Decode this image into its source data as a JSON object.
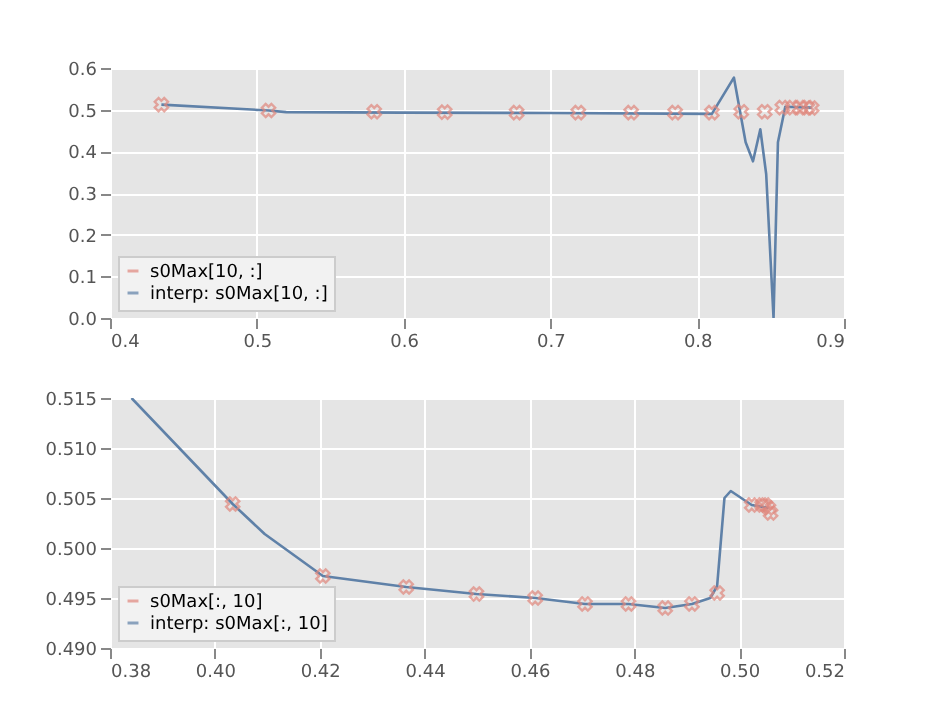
{
  "chart_data": [
    {
      "type": "scatter",
      "xlim": [
        0.4,
        0.9
      ],
      "ylim": [
        0.0,
        0.6
      ],
      "xticks": [
        0.4,
        0.5,
        0.6,
        0.7,
        0.8,
        0.9
      ],
      "yticks": [
        {
          "value": 0,
          "label": "0.0"
        },
        0.1,
        0.2,
        0.3,
        0.4,
        0.5,
        0.6
      ],
      "grid": true,
      "legend": "bottom left",
      "series": [
        {
          "name": "s0Max[10, :]",
          "color": "#e0877c",
          "marker": "cross",
          "x": [
            0.435,
            0.508,
            0.58,
            0.628,
            0.677,
            0.719,
            0.755,
            0.785,
            0.81,
            0.83,
            0.846,
            0.858,
            0.865,
            0.87,
            0.875,
            0.878
          ],
          "values": [
            0.512,
            0.498,
            0.495,
            0.494,
            0.493,
            0.493,
            0.493,
            0.493,
            0.493,
            0.495,
            0.495,
            0.505,
            0.505,
            0.505,
            0.505,
            0.504
          ]
        },
        {
          "name": "interp: s0Max[10, :]",
          "type": "line",
          "color": "#5f81a8",
          "x": [
            0.435,
            0.508,
            0.52,
            0.6,
            0.7,
            0.81,
            0.825,
            0.833,
            0.838,
            0.843,
            0.847,
            0.852,
            0.855,
            0.86,
            0.878
          ],
          "values": [
            0.512,
            0.498,
            0.494,
            0.493,
            0.492,
            0.49,
            0.577,
            0.422,
            0.376,
            0.453,
            0.345,
            0.0,
            0.422,
            0.507,
            0.505
          ]
        }
      ]
    },
    {
      "type": "scatter",
      "xlim": [
        0.38,
        0.52
      ],
      "ylim": [
        0.49,
        0.515
      ],
      "xticks": [
        0.38,
        {
          "value": 0.4,
          "label": "0.40"
        },
        0.42,
        0.44,
        0.46,
        0.48,
        {
          "value": 0.5,
          "label": "0.50"
        },
        0.52
      ],
      "yticks": [
        {
          "value": 0.49,
          "label": "0.490"
        },
        0.495,
        {
          "value": 0.5,
          "label": "0.500"
        },
        0.505,
        {
          "value": 0.51,
          "label": "0.510"
        },
        0.515
      ],
      "grid": true,
      "legend": "bottom left",
      "series": [
        {
          "name": "s0Max[:, 10]",
          "color": "#e0877c",
          "marker": "cross",
          "x": [
            0.4034,
            0.4206,
            0.4365,
            0.4499,
            0.4611,
            0.4706,
            0.4789,
            0.4859,
            0.491,
            0.4958,
            0.5024,
            0.5044,
            0.505,
            0.5056,
            0.506
          ],
          "values": [
            0.5044,
            0.4972,
            0.4961,
            0.4954,
            0.495,
            0.4944,
            0.4944,
            0.494,
            0.4944,
            0.4955,
            0.5043,
            0.5043,
            0.5043,
            0.504,
            0.5035
          ]
        },
        {
          "name": "interp: s0Max[:, 10]",
          "type": "line",
          "color": "#5f81a8",
          "x": [
            0.3841,
            0.4034,
            0.4095,
            0.4206,
            0.4365,
            0.4499,
            0.4611,
            0.4706,
            0.4789,
            0.4859,
            0.491,
            0.4945,
            0.4958,
            0.4972,
            0.4984,
            0.5024,
            0.5056
          ],
          "values": [
            0.515,
            0.5044,
            0.5014,
            0.4972,
            0.4961,
            0.4954,
            0.495,
            0.4944,
            0.4944,
            0.494,
            0.4944,
            0.495,
            0.4962,
            0.505,
            0.5057,
            0.5043,
            0.504
          ]
        }
      ]
    }
  ]
}
